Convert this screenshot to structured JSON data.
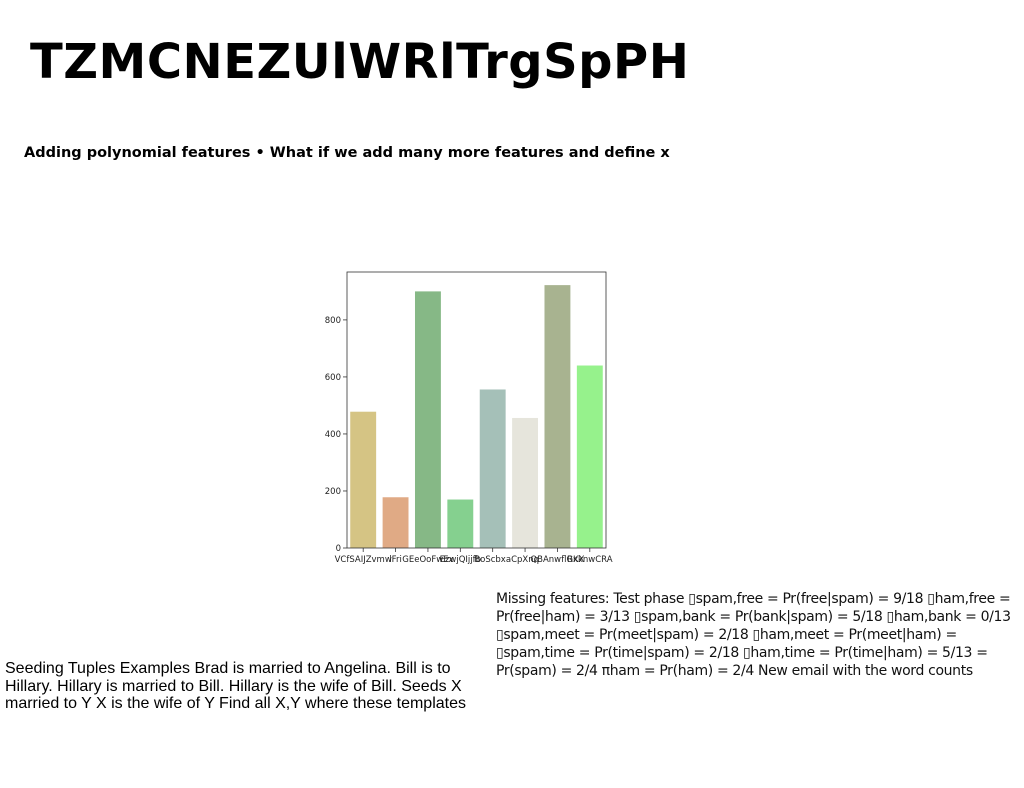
{
  "slide": {
    "title": "TZMCNEZUlWRlTrgSpPH",
    "subtitle": "Adding polynomial features • What if we add many more features and define x",
    "missing_text": "Missing features: Test phase ▯spam,free = Pr(free|spam) = 9/18 ▯ham,free = Pr(free|ham) = 3/13 ▯spam,bank = Pr(bank|spam) = 5/18 ▯ham,bank = 0/13 ▯spam,meet = Pr(meet|spam) = 2/18 ▯ham,meet = Pr(meet|ham) = ▯spam,time = Pr(time|spam) = 2/18 ▯ham,time = Pr(time|ham) = 5/13 = Pr(spam) = 2/4 πham = Pr(ham) = 2/4 New email with the word counts",
    "seeding_text": "Seeding Tuples Examples Brad is married to Angelina. Bill is to Hillary. Hillary is married to Bill. Hillary is the wife of Bill. Seeds X married to Y X is the wife of Y Find all X,Y where these templates"
  },
  "chart_data": {
    "type": "bar",
    "categories": [
      "VCfSAIJZvmw",
      "lFri",
      "GEeOoFwEx",
      "EzwjQIjjfb",
      "BoScbxa",
      "CpXnq",
      "QBAnwflGKX",
      "RxknwCRA"
    ],
    "values": [
      478,
      178,
      900,
      170,
      556,
      456,
      922,
      640
    ],
    "colors": [
      "#d5c484",
      "#e0aa85",
      "#86b886",
      "#85d08f",
      "#a5c0b8",
      "#e6e5dc",
      "#a8b390",
      "#96f28c"
    ],
    "yticks": [
      0,
      200,
      400,
      600,
      800
    ],
    "ylim": [
      0,
      968
    ],
    "title": "",
    "xlabel": "",
    "ylabel": ""
  }
}
